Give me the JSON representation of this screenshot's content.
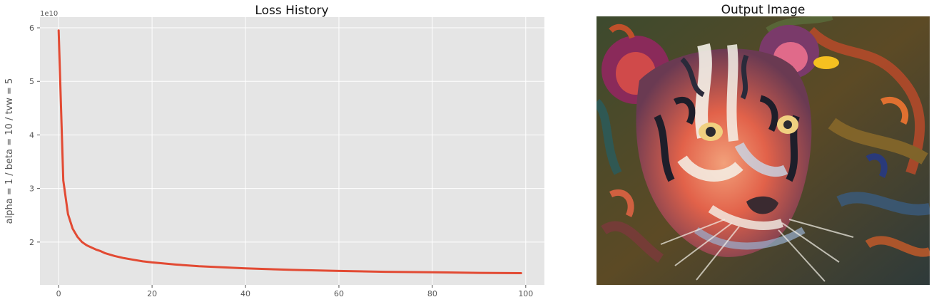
{
  "chart_data": {
    "type": "line",
    "title": "Loss History",
    "ylabel": "alpha = 1 / beta = 10 / tvw = 5",
    "xlabel": "",
    "y_exponent_label": "1e10",
    "xlim": [
      -4,
      104
    ],
    "ylim": [
      12000000000.0,
      62000000000.0
    ],
    "x_ticks": [
      0,
      20,
      40,
      60,
      80,
      100
    ],
    "x_tick_labels": [
      "0",
      "20",
      "40",
      "60",
      "80",
      "100"
    ],
    "y_ticks": [
      20000000000.0,
      30000000000.0,
      40000000000.0,
      50000000000.0,
      60000000000.0
    ],
    "y_tick_labels": [
      "2",
      "3",
      "4",
      "5",
      "6"
    ],
    "grid": true,
    "series_color": "#E24A33",
    "background_color": "#E5E5E5",
    "points": [
      [
        0,
        59500000000.0
      ],
      [
        1,
        31500000000.0
      ],
      [
        2,
        25200000000.0
      ],
      [
        3,
        22500000000.0
      ],
      [
        4,
        21000000000.0
      ],
      [
        5,
        20000000000.0
      ],
      [
        6,
        19400000000.0
      ],
      [
        7,
        19000000000.0
      ],
      [
        8,
        18600000000.0
      ],
      [
        9,
        18300000000.0
      ],
      [
        10,
        17900000000.0
      ],
      [
        12,
        17400000000.0
      ],
      [
        14,
        17000000000.0
      ],
      [
        16,
        16700000000.0
      ],
      [
        18,
        16400000000.0
      ],
      [
        20,
        16200000000.0
      ],
      [
        25,
        15800000000.0
      ],
      [
        30,
        15500000000.0
      ],
      [
        35,
        15300000000.0
      ],
      [
        40,
        15100000000.0
      ],
      [
        50,
        14800000000.0
      ],
      [
        60,
        14600000000.0
      ],
      [
        70,
        14450000000.0
      ],
      [
        80,
        14350000000.0
      ],
      [
        90,
        14250000000.0
      ],
      [
        99,
        14200000000.0
      ]
    ]
  },
  "image_panel": {
    "title": "Output Image",
    "subject": "stylized-tiger-painting"
  }
}
